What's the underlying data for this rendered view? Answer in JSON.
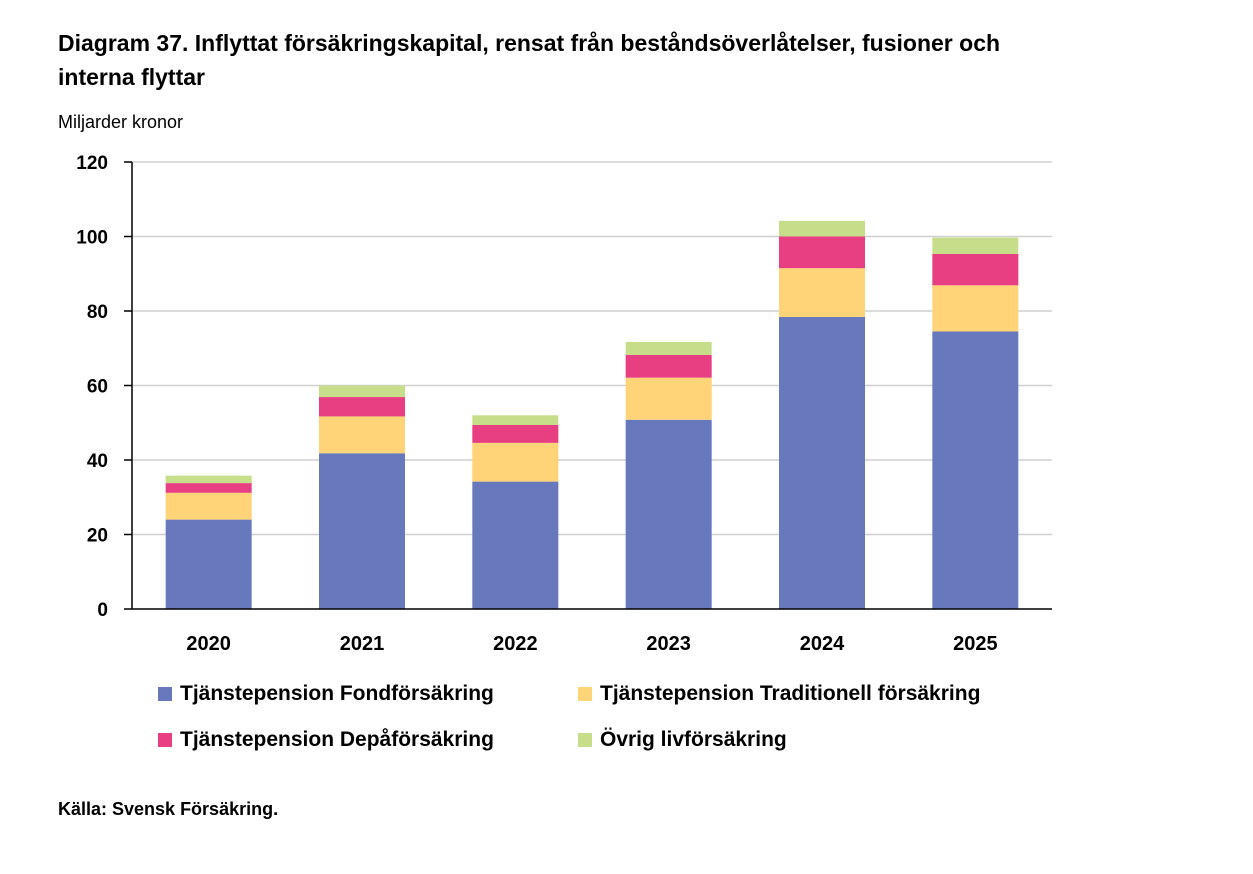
{
  "chart_data": {
    "type": "bar",
    "stacked": true,
    "title": "Diagram 37. Inflyttat försäkringskapital, rensat från beståndsöverlåtelser, fusioner och interna flyttar",
    "ylabel": "Miljarder kronor",
    "ylim": [
      0,
      120
    ],
    "yticks": [
      0,
      20,
      40,
      60,
      80,
      100,
      120
    ],
    "grid": true,
    "legend_position": "bottom",
    "categories": [
      "2020",
      "2021",
      "2022",
      "2023",
      "2024",
      "2025"
    ],
    "series": [
      {
        "name": "Tjänstepension Fondförsäkring",
        "color": "#6779BC",
        "values": [
          24.0,
          41.8,
          34.2,
          50.8,
          78.4,
          74.5
        ]
      },
      {
        "name": "Tjänstepension Traditionell försäkring",
        "color": "#FFD479",
        "values": [
          7.2,
          9.9,
          10.4,
          11.3,
          13.1,
          12.4
        ]
      },
      {
        "name": "Tjänstepension Depåförsäkring",
        "color": "#E83E82",
        "values": [
          2.6,
          5.2,
          4.8,
          6.1,
          8.5,
          8.4
        ]
      },
      {
        "name": "Övrig livförsäkring",
        "color": "#C6DE8A",
        "values": [
          2.0,
          3.1,
          2.6,
          3.5,
          4.2,
          4.4
        ]
      }
    ],
    "source": "Källa: Svensk Försäkring."
  }
}
